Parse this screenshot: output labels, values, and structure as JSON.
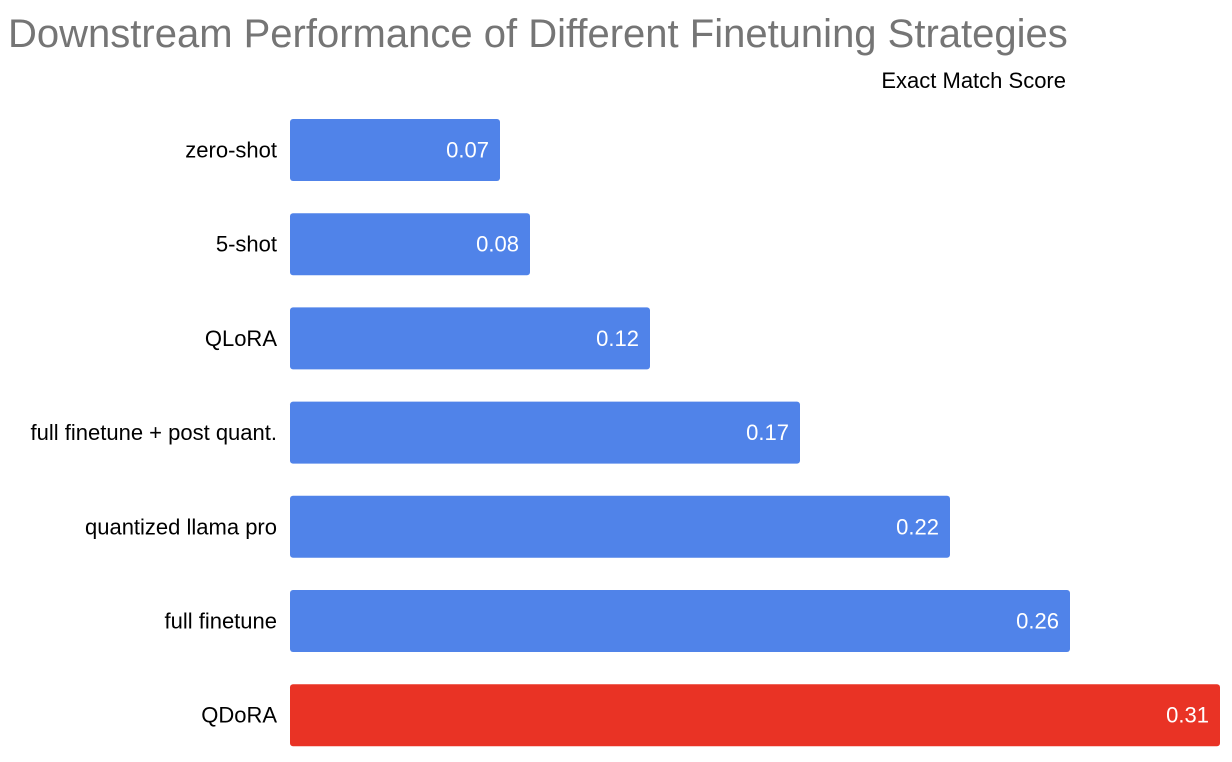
{
  "chart_data": {
    "type": "bar",
    "orientation": "horizontal",
    "title": "Downstream Performance of Different Finetuning Strategies",
    "metric_label": "Exact Match Score",
    "categories": [
      "zero-shot",
      "5-shot",
      "QLoRA",
      "full finetune + post quant.",
      "quantized llama pro",
      "full finetune",
      "QDoRA"
    ],
    "values": [
      0.07,
      0.08,
      0.12,
      0.17,
      0.22,
      0.26,
      0.31
    ],
    "value_labels": [
      "0.07",
      "0.08",
      "0.12",
      "0.17",
      "0.22",
      "0.26",
      "0.31"
    ],
    "bar_colors": [
      "#5083E9",
      "#5083E9",
      "#5083E9",
      "#5083E9",
      "#5083E9",
      "#5083E9",
      "#E93325"
    ],
    "xlim": [
      0,
      0.31
    ],
    "grid": false,
    "legend": "none"
  }
}
